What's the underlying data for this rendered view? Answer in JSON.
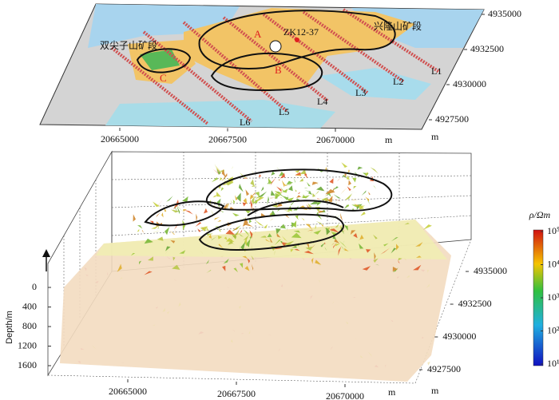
{
  "map": {
    "zones": [
      "A",
      "B",
      "C"
    ],
    "drill_hole": "ZK12-37",
    "sections": [
      "双尖子山矿段",
      "兴隆山矿段"
    ],
    "lines": [
      "L1",
      "L2",
      "L3",
      "L4",
      "L5",
      "L6"
    ],
    "xticks": [
      20665000,
      20667500,
      20670000
    ],
    "x_unit": "m",
    "yticks": [
      4935000,
      4932500,
      4930000,
      4927500
    ],
    "y_unit": "m"
  },
  "model": {
    "xticks": [
      20665000,
      20667500,
      20670000
    ],
    "x_unit": "m",
    "yticks": [
      4935000,
      4932500,
      4930000,
      4927500
    ],
    "y_unit": "m",
    "depth_ticks": [
      0,
      400,
      800,
      1200,
      1600
    ],
    "depth_label": "Depth/m"
  },
  "colorbar": {
    "label": "ρ/Ωm",
    "ticks": [
      {
        "value": 100000,
        "label": "10⁵"
      },
      {
        "value": 10000,
        "label": "10⁴"
      },
      {
        "value": 1000,
        "label": "10³"
      },
      {
        "value": 100,
        "label": "10²"
      },
      {
        "value": 10,
        "label": "10¹"
      }
    ]
  }
}
